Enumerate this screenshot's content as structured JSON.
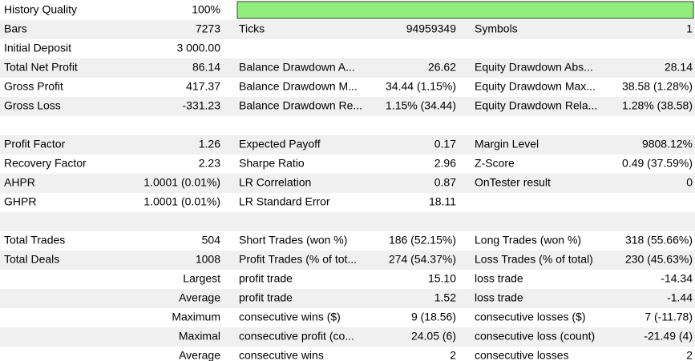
{
  "history_quality": {
    "label": "History Quality",
    "value": 100,
    "value_label": "100%",
    "lim": [
      0,
      100
    ]
  },
  "rows": [
    [
      "Bars",
      "7273",
      "Ticks",
      "94959349",
      "Symbols",
      "1"
    ],
    [
      "Initial Deposit",
      "3 000.00",
      null,
      null,
      null,
      null
    ],
    [
      "Total Net Profit",
      "86.14",
      "Balance Drawdown A...",
      "26.62",
      "Equity Drawdown Abs...",
      "28.14"
    ],
    [
      "Gross Profit",
      "417.37",
      "Balance Drawdown M...",
      "34.44 (1.15%)",
      "Equity Drawdown Max...",
      "38.58 (1.28%)"
    ],
    [
      "Gross Loss",
      "-331.23",
      "Balance Drawdown Re...",
      "1.15% (34.44)",
      "Equity Drawdown Rela...",
      "1.28% (38.58)"
    ],
    [
      null,
      null,
      null,
      null,
      null,
      null
    ],
    [
      "Profit Factor",
      "1.26",
      "Expected Payoff",
      "0.17",
      "Margin Level",
      "9808.12%"
    ],
    [
      "Recovery Factor",
      "2.23",
      "Sharpe Ratio",
      "2.96",
      "Z-Score",
      "0.49 (37.59%)"
    ],
    [
      "AHPR",
      "1.0001 (0.01%)",
      "LR Correlation",
      "0.87",
      "OnTester result",
      "0"
    ],
    [
      "GHPR",
      "1.0001 (0.01%)",
      "LR Standard Error",
      "18.11",
      null,
      null
    ],
    [
      null,
      null,
      null,
      null,
      null,
      null
    ],
    [
      "Total Trades",
      "504",
      "Short Trades (won %)",
      "186 (52.15%)",
      "Long Trades (won %)",
      "318 (55.66%)"
    ],
    [
      "Total Deals",
      "1008",
      "Profit Trades (% of tot...",
      "274 (54.37%)",
      "Loss Trades (% of total)",
      "230 (45.63%)"
    ],
    [
      null,
      "Largest",
      "profit trade",
      "15.10",
      "loss trade",
      "-14.34"
    ],
    [
      null,
      "Average",
      "profit trade",
      "1.52",
      "loss trade",
      "-1.44"
    ],
    [
      null,
      "Maximum",
      "consecutive wins ($)",
      "9 (18.56)",
      "consecutive losses ($)",
      "7 (-11.78)"
    ],
    [
      null,
      "Maximal",
      "consecutive profit (co...",
      "24.05 (6)",
      "consecutive loss (count)",
      "-21.49 (4)"
    ],
    [
      null,
      "Average",
      "consecutive wins",
      "2",
      "consecutive losses",
      "2"
    ]
  ]
}
